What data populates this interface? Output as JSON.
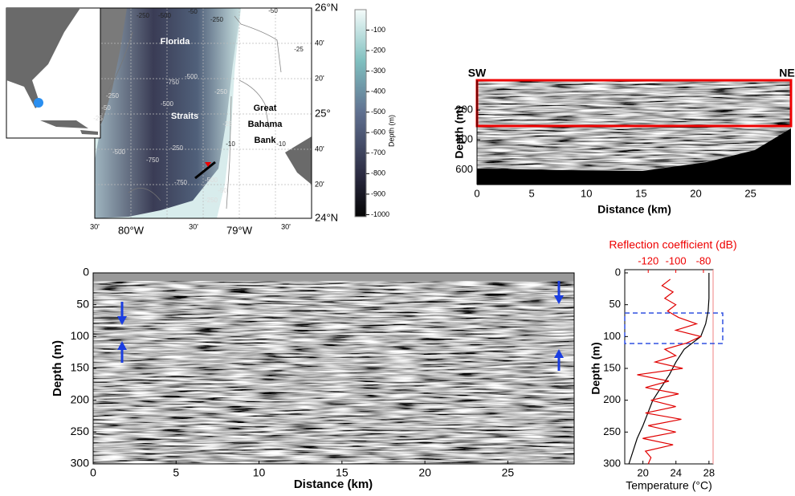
{
  "chart_data": [
    {
      "type": "map",
      "lat_labels": [
        "26°N",
        "40'",
        "20'",
        "25°",
        "40'",
        "20'",
        "24°N"
      ],
      "lon_labels": [
        "30'",
        "80°W",
        "30'",
        "79°W",
        "30'"
      ],
      "place_labels": [
        "Florida",
        "Straits",
        "Great",
        "Bahama",
        "Bank"
      ],
      "contour_labels": [
        "-250",
        "-500",
        "-50",
        "-250",
        "-50",
        "-25",
        "-10",
        "-750",
        "-500",
        "-250",
        "-50",
        "-25",
        "-500",
        "-250",
        "-750",
        "-750",
        "-500",
        "-250",
        "-50",
        "-10",
        "-25",
        "-500",
        "-250"
      ],
      "colorbar": {
        "label": "Depth (m)",
        "lim": [
          -1010,
          0
        ],
        "ticks": [
          -100,
          -200,
          -300,
          -400,
          -500,
          -600,
          -700,
          -800,
          -900,
          -1000
        ]
      }
    },
    {
      "type": "seismic",
      "annotations": [
        "SW",
        "NE"
      ],
      "xlabel": "Distance (km)",
      "ylabel": "Depth (m)",
      "xlim": [
        0,
        28.7
      ],
      "ylim": [
        700,
        0
      ],
      "xticks": [
        0,
        5,
        10,
        15,
        20,
        25
      ],
      "yticks": [
        200,
        400,
        600
      ]
    },
    {
      "type": "seismic",
      "xlabel": "Distance (km)",
      "ylabel": "Depth (m)",
      "xlim": [
        0,
        29
      ],
      "ylim": [
        300,
        0
      ],
      "xticks": [
        0,
        5,
        10,
        15,
        20,
        25
      ],
      "yticks": [
        0,
        50,
        100,
        150,
        200,
        250,
        300
      ]
    },
    {
      "type": "profile",
      "xlabel": "Temperature (°C)",
      "x2label": "Reflection coefficient (dB)",
      "ylabel": "Depth (m)",
      "ylim": [
        300,
        0
      ],
      "yticks": [
        0,
        50,
        100,
        150,
        200,
        250,
        300
      ],
      "xlim": [
        17.8,
        28.5
      ],
      "xticks": [
        20,
        24,
        28
      ],
      "x2lim": [
        -137,
        -73
      ],
      "x2ticks": [
        -120,
        -100,
        -80
      ],
      "series": [
        {
          "color": "#000000",
          "axis": "x",
          "x": [
            28.0,
            28.0,
            28.0,
            27.9,
            27.6,
            27.0,
            25.0,
            24.0,
            23.2,
            22.2,
            21.2,
            20.6,
            20.0,
            19.3,
            18.8,
            18.3
          ],
          "y": [
            0,
            20,
            40,
            60,
            80,
            100,
            120,
            140,
            160,
            180,
            200,
            220,
            240,
            260,
            280,
            300
          ]
        },
        {
          "color": "#e00000",
          "axis": "x2",
          "x": [
            -104,
            -110,
            -102,
            -108,
            -100,
            -106,
            -98,
            -85,
            -100,
            -82,
            -92,
            -108,
            -100,
            -115,
            -95,
            -128,
            -105,
            -122,
            -98,
            -118,
            -100,
            -122,
            -96,
            -120,
            -100,
            -124,
            -102,
            -122,
            -118,
            -120
          ],
          "y": [
            10,
            20,
            30,
            40,
            50,
            60,
            70,
            80,
            90,
            100,
            110,
            120,
            130,
            140,
            150,
            160,
            170,
            180,
            190,
            200,
            210,
            220,
            230,
            240,
            250,
            260,
            270,
            280,
            290,
            300
          ]
        }
      ]
    }
  ]
}
